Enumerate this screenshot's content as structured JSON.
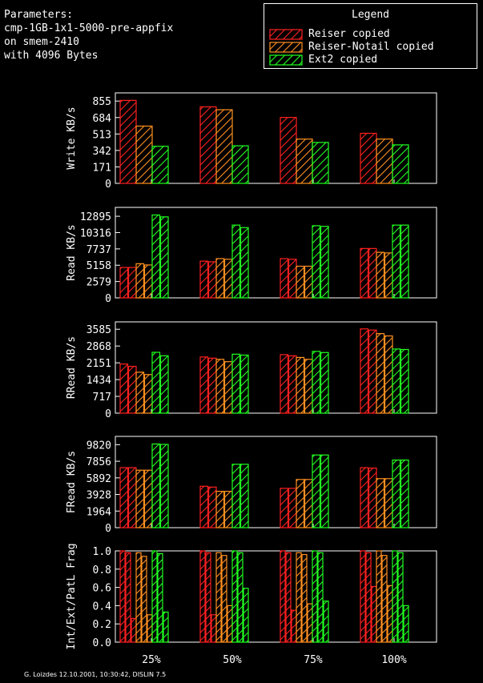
{
  "header": {
    "lines": [
      "Parameters:",
      "cmp-1GB-1x1-5000-pre-appfix",
      "on smem-2410",
      "with 4096 Bytes"
    ]
  },
  "legend": {
    "title": "Legend",
    "items": [
      {
        "label": "Reiser copied",
        "color": "#ff2020"
      },
      {
        "label": "Reiser-Notail copied",
        "color": "#ff9020"
      },
      {
        "label": "Ext2 copied",
        "color": "#20ff20"
      }
    ]
  },
  "footer": "G. Loizdes 12.10.2001, 10:30:42, DISLIN 7.5",
  "chart_data": [
    {
      "type": "bar",
      "ylabel": "Write KB/s",
      "yticks": [
        "0",
        "171",
        "342",
        "513",
        "684",
        "855"
      ],
      "ylim": [
        0,
        940
      ],
      "categories": [
        "25%",
        "50%",
        "75%",
        "100%"
      ],
      "series": [
        {
          "name": "Reiser copied",
          "values": [
            [
              862
            ],
            [
              795
            ],
            [
              685
            ],
            [
              520
            ]
          ]
        },
        {
          "name": "Reiser-Notail copied",
          "values": [
            [
              595
            ],
            [
              765
            ],
            [
              460
            ],
            [
              460
            ]
          ]
        },
        {
          "name": "Ext2 copied",
          "values": [
            [
              385
            ],
            [
              390
            ],
            [
              425
            ],
            [
              400
            ]
          ]
        }
      ]
    },
    {
      "type": "bar",
      "ylabel": "Read KB/s",
      "yticks": [
        "0",
        "2579",
        "5158",
        "7737",
        "10316",
        "12895"
      ],
      "ylim": [
        0,
        14300
      ],
      "categories": [
        "25%",
        "50%",
        "75%",
        "100%"
      ],
      "series": [
        {
          "name": "Reiser copied",
          "values": [
            [
              4800,
              4800
            ],
            [
              5800,
              5700
            ],
            [
              6200,
              6100
            ],
            [
              7800,
              7800
            ]
          ]
        },
        {
          "name": "Reiser-Notail copied",
          "values": [
            [
              5400,
              5200
            ],
            [
              6200,
              6100
            ],
            [
              5000,
              5000
            ],
            [
              7200,
              7100
            ]
          ]
        },
        {
          "name": "Ext2 copied",
          "values": [
            [
              13100,
              12800
            ],
            [
              11500,
              11100
            ],
            [
              11400,
              11300
            ],
            [
              11500,
              11500
            ]
          ]
        }
      ]
    },
    {
      "type": "bar",
      "ylabel": "RRead KB/s",
      "yticks": [
        "0",
        "717",
        "1434",
        "2151",
        "2868",
        "3585"
      ],
      "ylim": [
        0,
        3900
      ],
      "categories": [
        "25%",
        "50%",
        "75%",
        "100%"
      ],
      "series": [
        {
          "name": "Reiser copied",
          "values": [
            [
              2100,
              2000
            ],
            [
              2400,
              2350
            ],
            [
              2500,
              2450
            ],
            [
              3600,
              3550
            ]
          ]
        },
        {
          "name": "Reiser-Notail copied",
          "values": [
            [
              1750,
              1650
            ],
            [
              2300,
              2200
            ],
            [
              2380,
              2300
            ],
            [
              3400,
              3300
            ]
          ]
        },
        {
          "name": "Ext2 copied",
          "values": [
            [
              2600,
              2450
            ],
            [
              2520,
              2480
            ],
            [
              2640,
              2590
            ],
            [
              2740,
              2720
            ]
          ]
        }
      ]
    },
    {
      "type": "bar",
      "ylabel": "FRead KB/s",
      "yticks": [
        "0",
        "1964",
        "3928",
        "5892",
        "7856",
        "9820"
      ],
      "ylim": [
        0,
        10800
      ],
      "categories": [
        "25%",
        "50%",
        "75%",
        "100%"
      ],
      "series": [
        {
          "name": "Reiser copied",
          "values": [
            [
              7100,
              7100
            ],
            [
              4900,
              4800
            ],
            [
              4650,
              4650
            ],
            [
              7100,
              7050
            ]
          ]
        },
        {
          "name": "Reiser-Notail copied",
          "values": [
            [
              6800,
              6800
            ],
            [
              4300,
              4300
            ],
            [
              5700,
              5700
            ],
            [
              5800,
              5800
            ]
          ]
        },
        {
          "name": "Ext2 copied",
          "values": [
            [
              9900,
              9850
            ],
            [
              7500,
              7500
            ],
            [
              8600,
              8600
            ],
            [
              8000,
              8000
            ]
          ]
        }
      ]
    },
    {
      "type": "bar",
      "ylabel": "Int/Ext/PatL Frag",
      "yticks": [
        "0.0",
        "0.2",
        "0.4",
        "0.6",
        "0.8",
        "1.0"
      ],
      "ylim": [
        0,
        1.0
      ],
      "categories": [
        "25%",
        "50%",
        "75%",
        "100%"
      ],
      "series": [
        {
          "name": "Reiser copied",
          "values": [
            [
              1.0,
              0.98,
              0.26
            ],
            [
              1.0,
              0.98,
              0.3
            ],
            [
              1.0,
              0.98,
              0.35
            ],
            [
              1.0,
              0.98,
              0.61
            ]
          ]
        },
        {
          "name": "Reiser-Notail copied",
          "values": [
            [
              0.98,
              0.94,
              0.3
            ],
            [
              0.98,
              0.95,
              0.4
            ],
            [
              0.98,
              0.96,
              0.42
            ],
            [
              1.0,
              0.95,
              0.62
            ]
          ]
        },
        {
          "name": "Ext2 copied",
          "values": [
            [
              1.0,
              0.97,
              0.33
            ],
            [
              1.0,
              0.98,
              0.59
            ],
            [
              1.0,
              0.98,
              0.45
            ],
            [
              1.0,
              0.98,
              0.4
            ]
          ]
        }
      ]
    }
  ]
}
